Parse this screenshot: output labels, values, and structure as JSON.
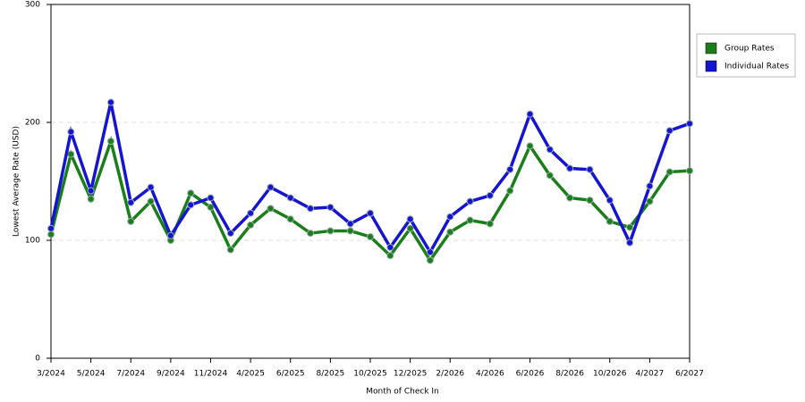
{
  "chart_data": {
    "type": "line",
    "x_label": "Month of Check In",
    "y_label": "Lowest Average Rate (USD)",
    "categories": [
      "3/2024",
      null,
      "5/2024",
      null,
      "7/2024",
      null,
      "9/2024",
      null,
      "11/2024",
      null,
      "4/2025",
      null,
      "6/2025",
      null,
      "8/2025",
      null,
      "10/2025",
      null,
      "12/2025",
      null,
      "2/2026",
      null,
      "4/2026",
      null,
      "6/2026",
      null,
      "8/2026",
      null,
      "10/2026",
      null,
      "4/2027",
      null,
      "6/2027"
    ],
    "series": [
      {
        "name": "Group Rates",
        "color": "#1a7f1a",
        "values": [
          105,
          173,
          135,
          184,
          116,
          133,
          100,
          140,
          128,
          92,
          113,
          127,
          118,
          106,
          108,
          108,
          103,
          87,
          110,
          83,
          107,
          117,
          114,
          142,
          180,
          155,
          136,
          134,
          116,
          111,
          133,
          158,
          159
        ]
      },
      {
        "name": "Individual Rates",
        "color": "#1414d2",
        "values": [
          110,
          192,
          142,
          217,
          132,
          145,
          104,
          130,
          136,
          106,
          123,
          145,
          136,
          127,
          128,
          114,
          123,
          94,
          118,
          90,
          120,
          133,
          138,
          160,
          207,
          177,
          161,
          160,
          134,
          98,
          146,
          193,
          199
        ]
      }
    ],
    "ylim": [
      0,
      300
    ],
    "yticks": [
      0,
      100,
      200,
      300
    ],
    "grid": true,
    "legend": "top-right"
  }
}
